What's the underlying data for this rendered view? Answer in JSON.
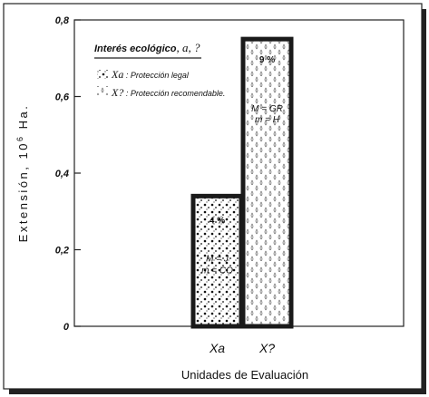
{
  "chart_data": {
    "type": "bar",
    "categories": [
      "Xa",
      "X?"
    ],
    "values": [
      0.34,
      0.75
    ],
    "ylim": [
      0,
      0.8
    ],
    "yticks": [
      "0",
      "0,2",
      "0,4",
      "0,6",
      "0,8"
    ],
    "ylabel_prefix": "Extensión, 10",
    "ylabel_exp": "6",
    "ylabel_suffix": " Ha.",
    "xlabel": "Unidades de Evaluación",
    "bar_labels": [
      {
        "pct": "4 %",
        "m_line": "M = J",
        "m2_line": "m = CO"
      },
      {
        "pct": "9 %",
        "m_line": "M = GR",
        "m2_line": "m = H"
      }
    ],
    "legend": {
      "title": "Interés ecológico",
      "title_suffix": ", a, ?",
      "items": [
        {
          "symbol": "Xa",
          "text": "Protección legal"
        },
        {
          "symbol": "X?",
          "text": "Protección recomendable."
        }
      ]
    },
    "grid": false,
    "legend_position": "top-left"
  }
}
